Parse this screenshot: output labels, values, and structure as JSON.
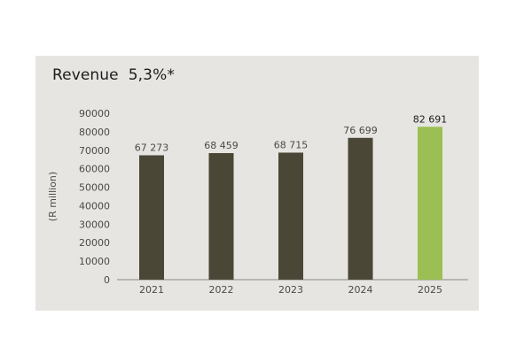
{
  "chart_data": {
    "type": "bar",
    "title": "Revenue  5,3%*",
    "ylabel": "(R million)",
    "xlabel": "",
    "categories": [
      "2021",
      "2022",
      "2023",
      "2024",
      "2025"
    ],
    "values": [
      67273,
      68459,
      68715,
      76699,
      82691
    ],
    "value_labels": [
      "67 273",
      "68 459",
      "68 715",
      "76 699",
      "82 691"
    ],
    "ylim": [
      0,
      90000
    ],
    "yticks": [
      0,
      10000,
      20000,
      30000,
      40000,
      50000,
      60000,
      70000,
      80000,
      90000
    ],
    "ytick_labels": [
      "0",
      "10000",
      "20000",
      "30000",
      "40000",
      "50000",
      "60000",
      "70000",
      "80000",
      "90000"
    ],
    "highlight_index": 4,
    "grid": false,
    "colors": {
      "bar": "#4b4737",
      "highlight": "#9bbf52",
      "background": "#e6e5e1",
      "axis": "#888888"
    }
  }
}
